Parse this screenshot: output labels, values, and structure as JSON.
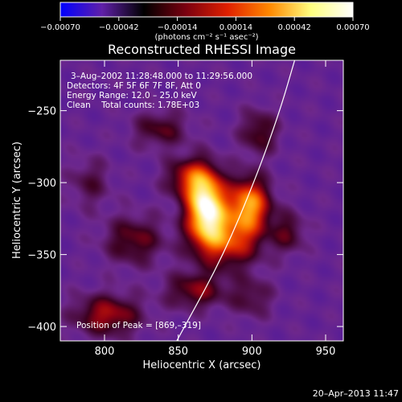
{
  "chart_data": {
    "type": "heatmap",
    "title": "Reconstructed RHESSI Image",
    "xlabel": "Heliocentric X (arcsec)",
    "ylabel": "Heliocentric Y (arcsec)",
    "xlim": [
      770,
      962
    ],
    "ylim": [
      -410,
      -215
    ],
    "xticks": [
      800,
      850,
      900,
      950
    ],
    "yticks": [
      -250,
      -300,
      -350,
      -400
    ],
    "xtick_labels": [
      "800",
      "850",
      "900",
      "950"
    ],
    "ytick_labels": [
      "−250",
      "−300",
      "−350",
      "−400"
    ],
    "colorbar": {
      "range": [
        -0.0007,
        0.0007
      ],
      "tick_values": [
        -0.0007,
        -0.00042,
        -0.00014,
        0.00014,
        0.00042,
        0.0007
      ],
      "tick_labels": [
        "−0.00070",
        "−0.00042",
        "−0.00014",
        "0.00014",
        "0.00042",
        "0.00070"
      ],
      "unit_label": "(photons cm⁻² s⁻¹ asec⁻²)",
      "colors": [
        "#0000ff",
        "#6020a8",
        "#000000",
        "#7a0010",
        "#e02000",
        "#ff8800",
        "#ffff80",
        "#ffffff"
      ]
    },
    "annotations": {
      "time": "3–Aug–2002 11:28:48.000 to 11:29:56.000",
      "detectors": "Detectors: 4F 5F 6F 7F 8F, Att 0",
      "energy": "Energy Range: 12.0 – 25.0 keV",
      "clean": "Clean    Total counts: 1.78E+03",
      "peak": "Position of Peak = [869,–319]"
    },
    "peak": {
      "x": 869,
      "y": -319
    },
    "sources": [
      {
        "x": 869,
        "y": -317,
        "amp": 1.0,
        "sx": 9,
        "sy": 16
      },
      {
        "x": 898,
        "y": -315,
        "amp": 0.72,
        "sx": 10,
        "sy": 13
      },
      {
        "x": 883,
        "y": -340,
        "amp": 0.55,
        "sx": 16,
        "sy": 13
      },
      {
        "x": 858,
        "y": -297,
        "amp": 0.45,
        "sx": 11,
        "sy": 10
      },
      {
        "x": 802,
        "y": -392,
        "amp": 0.42,
        "sx": 16,
        "sy": 10
      },
      {
        "x": 820,
        "y": -340,
        "amp": 0.32,
        "sx": 14,
        "sy": 12
      },
      {
        "x": 838,
        "y": -263,
        "amp": 0.28,
        "sx": 13,
        "sy": 9
      },
      {
        "x": 925,
        "y": -335,
        "amp": 0.26,
        "sx": 8,
        "sy": 10
      },
      {
        "x": 905,
        "y": -265,
        "amp": 0.3,
        "sx": 9,
        "sy": 11
      },
      {
        "x": 862,
        "y": -375,
        "amp": 0.35,
        "sx": 14,
        "sy": 9
      },
      {
        "x": 900,
        "y": -380,
        "amp": 0.22,
        "sx": 10,
        "sy": 10
      },
      {
        "x": 790,
        "y": -300,
        "amp": 0.2,
        "sx": 10,
        "sy": 12
      }
    ],
    "limb_arc": [
      {
        "x": 849,
        "y": -410
      },
      {
        "x": 880,
        "y": -352
      },
      {
        "x": 903,
        "y": -296
      },
      {
        "x": 919,
        "y": -250
      },
      {
        "x": 929,
        "y": -215
      }
    ]
  },
  "footer": {
    "date": "20–Apr–2013 11:47"
  }
}
